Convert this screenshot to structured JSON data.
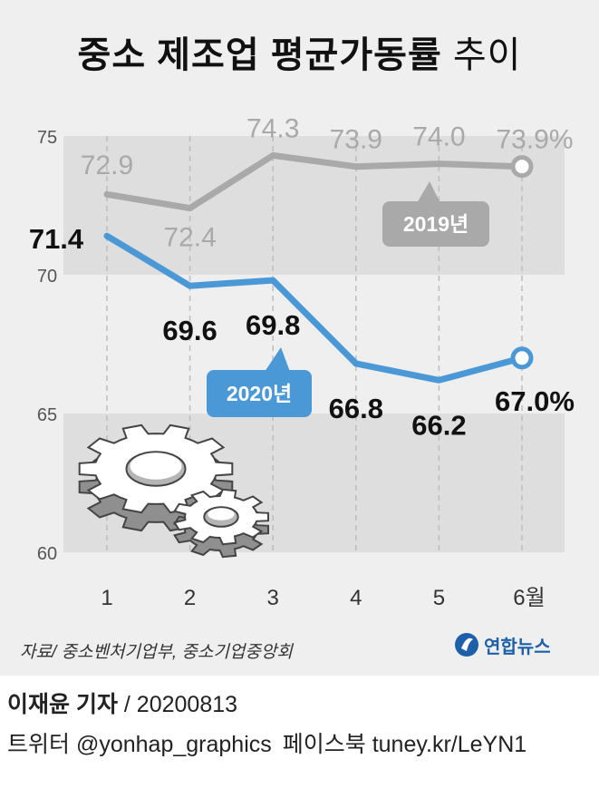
{
  "title": {
    "main": "중소 제조업 평균가동률",
    "sub": "추이"
  },
  "chart_data": {
    "type": "line",
    "categories": [
      "1",
      "2",
      "3",
      "4",
      "5",
      "6월"
    ],
    "ylim": [
      60,
      75
    ],
    "yticks": [
      "60",
      "65",
      "70",
      "75"
    ],
    "grid": "vertical dashed",
    "series": [
      {
        "name": "2019년",
        "values": [
          72.9,
          72.4,
          74.3,
          73.9,
          74.0,
          73.9
        ],
        "labels": [
          "72.9",
          "72.4",
          "74.3",
          "73.9",
          "74.0",
          "73.9%"
        ],
        "color": "#a9a9a9"
      },
      {
        "name": "2020년",
        "values": [
          71.4,
          69.6,
          69.8,
          66.8,
          66.2,
          67.0
        ],
        "labels": [
          "71.4",
          "69.6",
          "69.8",
          "66.8",
          "66.2",
          "67.0%"
        ],
        "color": "#4a98d6"
      }
    ]
  },
  "footer": {
    "source": "자료/ 중소벤처기업부, 중소기업중앙회",
    "logo_text": "연합뉴스",
    "reporter": "이재윤 기자",
    "date": "/ 20200813",
    "twitter": "트위터 @yonhap_graphics",
    "facebook": "페이스북 tuney.kr/LeYN1"
  }
}
